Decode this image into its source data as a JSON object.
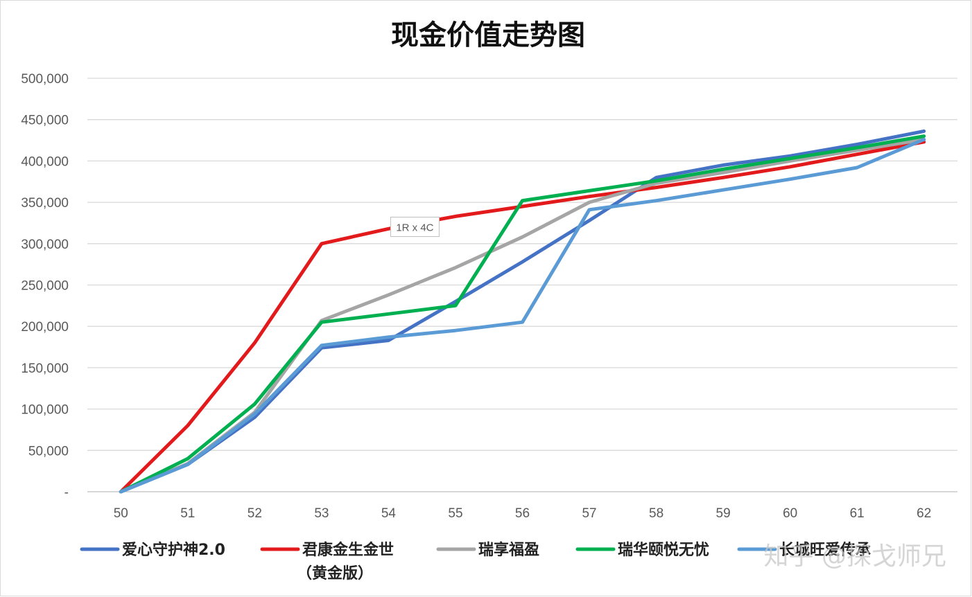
{
  "chart_data": {
    "type": "line",
    "title": "现金价值走势图",
    "xlabel": "",
    "ylabel": "",
    "x": [
      50,
      51,
      52,
      53,
      54,
      55,
      56,
      57,
      58,
      59,
      60,
      61,
      62
    ],
    "ylim": [
      0,
      500000
    ],
    "yticks": [
      {
        "value": 0,
        "label": "-"
      },
      {
        "value": 50000,
        "label": "50,000"
      },
      {
        "value": 100000,
        "label": "100,000"
      },
      {
        "value": 150000,
        "label": "150,000"
      },
      {
        "value": 200000,
        "label": "200,000"
      },
      {
        "value": 250000,
        "label": "250,000"
      },
      {
        "value": 300000,
        "label": "300,000"
      },
      {
        "value": 350000,
        "label": "350,000"
      },
      {
        "value": 400000,
        "label": "400,000"
      },
      {
        "value": 450000,
        "label": "450,000"
      },
      {
        "value": 500000,
        "label": "500,000"
      }
    ],
    "grid": true,
    "legend_position": "bottom",
    "series": [
      {
        "name": "爱心守护神2.0",
        "color": "#4472c4",
        "values": [
          0,
          33000,
          90000,
          174000,
          183000,
          230000,
          278000,
          328000,
          380000,
          395000,
          406000,
          420000,
          436000
        ]
      },
      {
        "name": "君康金生金世\n（黄金版）",
        "color": "#e31a1c",
        "values": [
          0,
          80000,
          180000,
          300000,
          318000,
          333000,
          345000,
          357000,
          368000,
          380000,
          393000,
          408000,
          423000
        ]
      },
      {
        "name": "瑞享福盈",
        "color": "#a5a5a5",
        "values": [
          0,
          34000,
          96000,
          207000,
          238000,
          271000,
          308000,
          350000,
          373000,
          386000,
          400000,
          413000,
          426000
        ]
      },
      {
        "name": "瑞华颐悦无忧",
        "color": "#00b050",
        "values": [
          0,
          40000,
          106000,
          205000,
          215000,
          225000,
          352000,
          364000,
          376000,
          390000,
          403000,
          416000,
          430000
        ]
      },
      {
        "name": "长城旺爱传承",
        "color": "#5b9bd5",
        "values": [
          0,
          33000,
          94000,
          177000,
          187000,
          195000,
          205000,
          341000,
          352000,
          365000,
          378000,
          392000,
          426000
        ]
      }
    ],
    "annotations": [
      {
        "text": "1R x 4C",
        "x": 54,
        "y": 322000
      }
    ]
  },
  "watermark": {
    "text": "知乎 @探戈师兄"
  }
}
